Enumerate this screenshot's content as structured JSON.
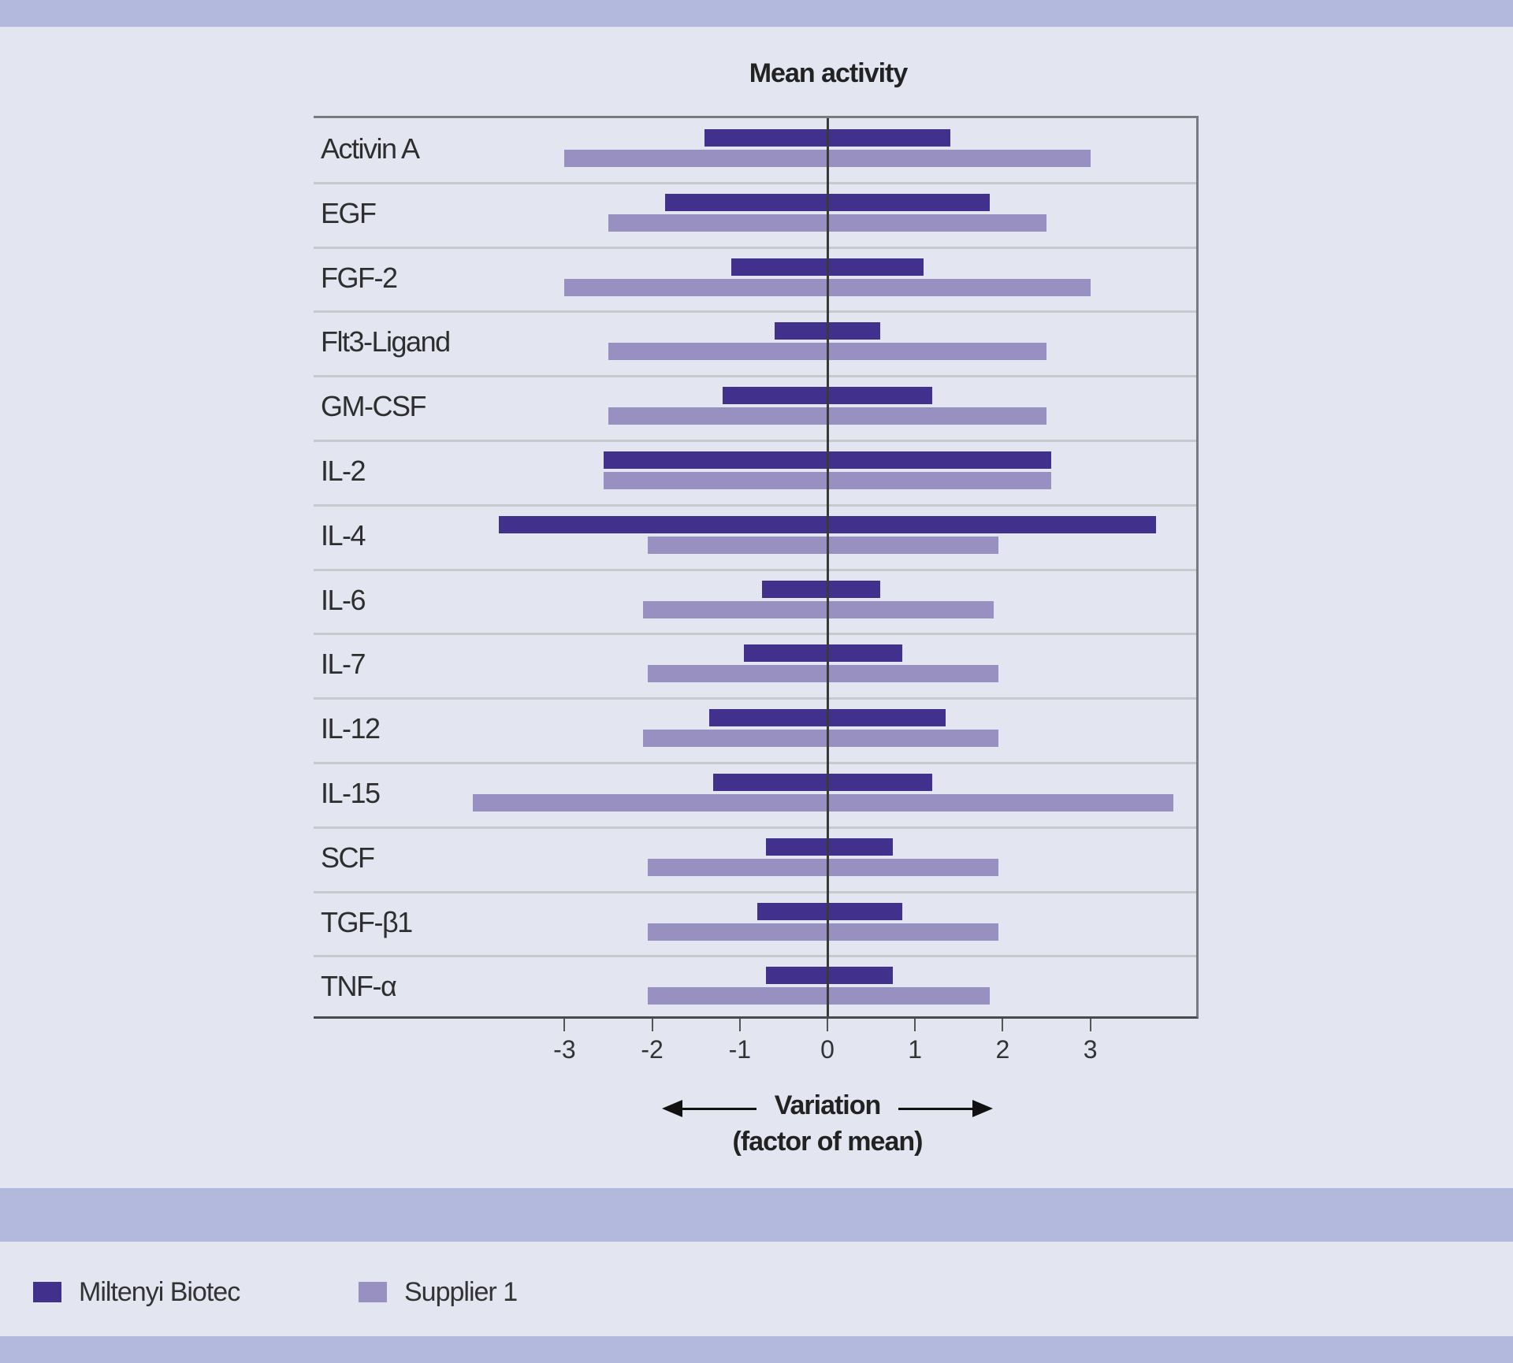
{
  "chart_data": {
    "type": "bar",
    "orientation": "horizontal-range",
    "title": "Mean activity",
    "xlabel": "Variation (factor of mean)",
    "ylabel": "",
    "xlim": [
      -4.0,
      4.2
    ],
    "x_ticks": [
      -3,
      -2,
      -1,
      0,
      1,
      2,
      3
    ],
    "grid": "horizontal row separators",
    "legend_position": "bottom-left",
    "categories": [
      "Activin A",
      "EGF",
      "FGF-2",
      "Flt3-Ligand",
      "GM-CSF",
      "IL-2",
      "IL-4",
      "IL-6",
      "IL-7",
      "IL-12",
      "IL-15",
      "SCF",
      "TGF-β1",
      "TNF-α"
    ],
    "series": [
      {
        "name": "Miltenyi Biotec",
        "color": "#42318c",
        "ranges": [
          [
            -1.4,
            1.4
          ],
          [
            -1.85,
            1.85
          ],
          [
            -1.1,
            1.1
          ],
          [
            -0.6,
            0.6
          ],
          [
            -1.2,
            1.2
          ],
          [
            -2.55,
            2.55
          ],
          [
            -3.75,
            3.75
          ],
          [
            -0.75,
            0.6
          ],
          [
            -0.95,
            0.85
          ],
          [
            -1.35,
            1.35
          ],
          [
            -1.3,
            1.2
          ],
          [
            -0.7,
            0.75
          ],
          [
            -0.8,
            0.85
          ],
          [
            -0.7,
            0.75
          ]
        ]
      },
      {
        "name": "Supplier 1",
        "color": "#9990c2",
        "ranges": [
          [
            -3.0,
            3.0
          ],
          [
            -2.5,
            2.5
          ],
          [
            -3.0,
            3.0
          ],
          [
            -2.5,
            2.5
          ],
          [
            -2.5,
            2.5
          ],
          [
            -2.55,
            2.55
          ],
          [
            -2.05,
            1.95
          ],
          [
            -2.1,
            1.9
          ],
          [
            -2.05,
            1.95
          ],
          [
            -2.1,
            1.95
          ],
          [
            -4.05,
            3.95
          ],
          [
            -2.05,
            1.95
          ],
          [
            -2.05,
            1.95
          ],
          [
            -2.05,
            1.85
          ]
        ]
      }
    ]
  },
  "header": {
    "title": "Mean activity"
  },
  "axis": {
    "ticks": [
      "-3",
      "-2",
      "-1",
      "0",
      "1",
      "2",
      "3"
    ],
    "label_line1": "Variation",
    "label_line2": "(factor of mean)"
  },
  "legend": {
    "items": [
      {
        "label": "Miltenyi Biotec",
        "color": "#42318c"
      },
      {
        "label": "Supplier 1",
        "color": "#9990c2"
      }
    ]
  },
  "colors": {
    "band": "#b3b9dc",
    "background": "#e3e5f0"
  }
}
